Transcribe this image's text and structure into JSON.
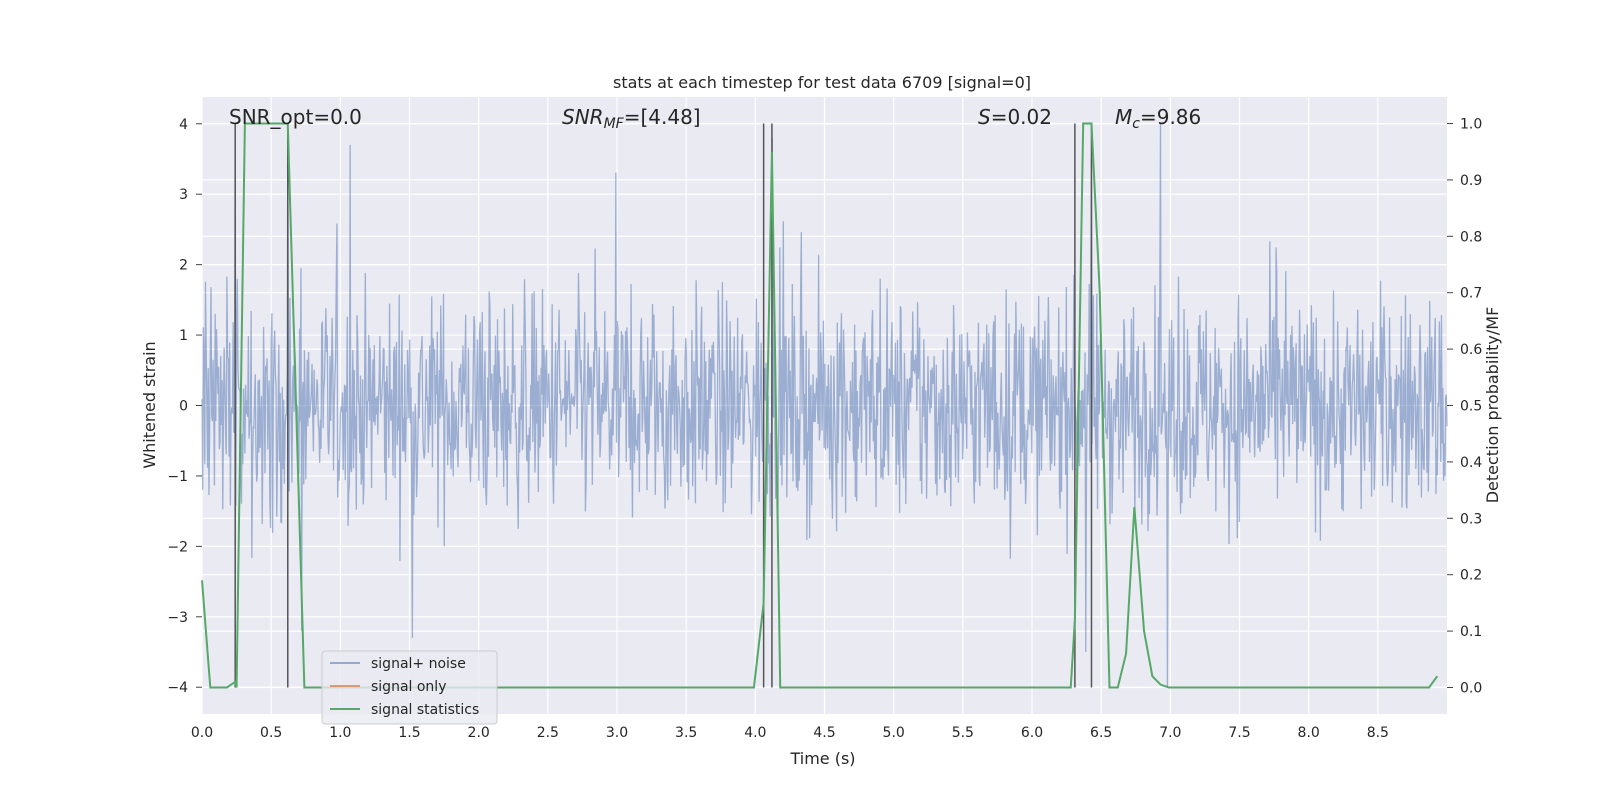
{
  "chart_data": {
    "type": "line",
    "title": "stats at each timestep for test data 6709 [signal=0]",
    "xlabel": "Time (s)",
    "ylabel": "Whitened strain",
    "ylabel_right": "Detection probability/MF",
    "xlim": [
      0.0,
      9.0
    ],
    "ylim": [
      -4.38,
      4.38
    ],
    "ylim_right": [
      -0.047,
      1.047
    ],
    "xticks": [
      "0.0",
      "0.5",
      "1.0",
      "1.5",
      "2.0",
      "2.5",
      "3.0",
      "3.5",
      "4.0",
      "4.5",
      "5.0",
      "5.5",
      "6.0",
      "6.5",
      "7.0",
      "7.5",
      "8.0",
      "8.5"
    ],
    "yticks": [
      "4",
      "3",
      "2",
      "1",
      "0",
      "−1",
      "−2",
      "−3",
      "−4"
    ],
    "yticks_right": [
      "1.0",
      "0.9",
      "0.8",
      "0.7",
      "0.6",
      "0.5",
      "0.4",
      "0.3",
      "0.2",
      "0.1",
      "0.0"
    ],
    "grid": true,
    "legend_position": "lower-left",
    "colors": {
      "background": "#eaeaf2",
      "grid": "#ffffff",
      "signal_noise": "#4c72b0",
      "signal_only": "#dd8452",
      "signal_statistics": "#55a868",
      "vlines": "#555555"
    },
    "annotations": {
      "snr_opt": "SNR_opt=0.0",
      "snr_mf_main": "SNR",
      "snr_mf_sub": "MF",
      "snr_mf_tail": "=[4.48]",
      "s_var": "S",
      "s_val": "=0.02",
      "mc_var": "M",
      "mc_sub": "c",
      "mc_val": "=9.86"
    },
    "vertical_lines_x": [
      0.24,
      0.62,
      4.06,
      4.12,
      6.31,
      6.43
    ],
    "series": [
      {
        "name": "signal+ noise",
        "axis": "left",
        "description": "whitened strain noise, approx gaussian std ~0.8, peaks near 4",
        "peaks": [
          [
            0.24,
            3.5
          ],
          [
            0.62,
            3.6
          ],
          [
            1.07,
            3.7
          ],
          [
            4.12,
            3.8
          ],
          [
            6.43,
            3.5
          ],
          [
            6.93,
            4.0
          ],
          [
            0.72,
            -3.2
          ],
          [
            1.52,
            -3.3
          ],
          [
            6.39,
            -3.5
          ],
          [
            6.98,
            -4.0
          ]
        ]
      },
      {
        "name": "signal only",
        "axis": "left",
        "x": [],
        "y": []
      },
      {
        "name": "signal statistics",
        "axis": "right",
        "x": [
          0.0,
          0.06,
          0.18,
          0.24,
          0.25,
          0.31,
          0.56,
          0.62,
          0.68,
          0.74,
          3.99,
          4.06,
          4.12,
          4.18,
          6.28,
          6.31,
          6.37,
          6.43,
          6.49,
          6.56,
          6.62,
          6.68,
          6.74,
          6.81,
          6.87,
          6.93,
          6.99,
          8.87,
          8.93
        ],
        "y": [
          0.19,
          0.0,
          0.0,
          0.01,
          0.0,
          1.0,
          1.0,
          1.0,
          0.5,
          0.0,
          0.0,
          0.15,
          0.95,
          0.0,
          0.0,
          0.12,
          1.0,
          1.0,
          0.7,
          0.0,
          0.0,
          0.06,
          0.32,
          0.1,
          0.02,
          0.005,
          0.0,
          0.0,
          0.02
        ]
      }
    ]
  }
}
